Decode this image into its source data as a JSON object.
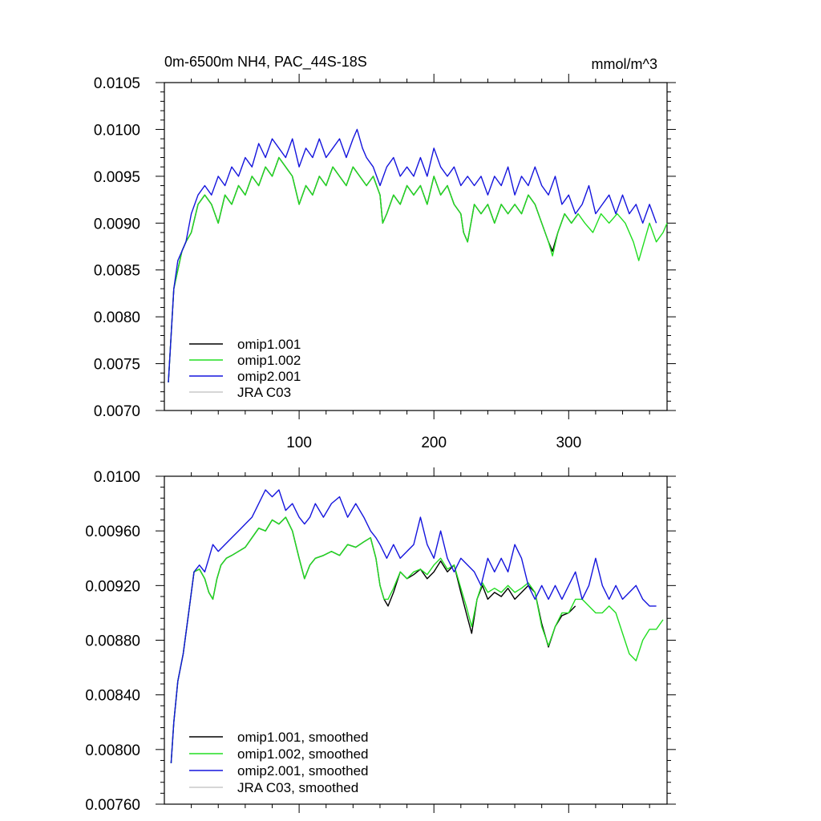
{
  "chart_data": [
    {
      "type": "line",
      "title": "0m-6500m NH4, PAC_44S-18S",
      "units": "mmol/m^3",
      "xlim": [
        0,
        373
      ],
      "ylim": [
        0.007,
        0.0105
      ],
      "xticks": [
        100,
        200,
        300
      ],
      "xtick_labels": [
        "100",
        "200",
        "300"
      ],
      "yticks": [
        0.007,
        0.0075,
        0.008,
        0.0085,
        0.009,
        0.0095,
        0.01,
        0.0105
      ],
      "ytick_labels": [
        "0.0070",
        "0.0075",
        "0.0080",
        "0.0085",
        "0.0090",
        "0.0095",
        "0.0100",
        "0.0105"
      ],
      "legend_position": "bottom-left",
      "series": [
        {
          "name": "omip1.001",
          "color": "#000000",
          "x": [
            3,
            5,
            7,
            10,
            13,
            16,
            20,
            25,
            30,
            35,
            40,
            45,
            50,
            55,
            60,
            65,
            70,
            75,
            80,
            85,
            90,
            95,
            100,
            105,
            110,
            115,
            120,
            125,
            130,
            135,
            140,
            145,
            150,
            155,
            160,
            162,
            165,
            170,
            175,
            180,
            185,
            190,
            195,
            200,
            205,
            210,
            215,
            220,
            222,
            225,
            230,
            235,
            240,
            245,
            250,
            255,
            260,
            265,
            270,
            275,
            280,
            285,
            288,
            292,
            297,
            302,
            307
          ],
          "values": [
            0.0073,
            0.0078,
            0.0083,
            0.0085,
            0.0087,
            0.0088,
            0.0089,
            0.0092,
            0.0093,
            0.0092,
            0.009,
            0.0093,
            0.0092,
            0.0094,
            0.0093,
            0.0095,
            0.0094,
            0.0096,
            0.0095,
            0.0097,
            0.0096,
            0.0095,
            0.0092,
            0.0094,
            0.0093,
            0.0095,
            0.0094,
            0.0096,
            0.0095,
            0.0094,
            0.0096,
            0.0095,
            0.0094,
            0.0095,
            0.0093,
            0.009,
            0.0091,
            0.0093,
            0.0092,
            0.0094,
            0.0093,
            0.0094,
            0.0092,
            0.0095,
            0.0093,
            0.0094,
            0.0092,
            0.0091,
            0.0089,
            0.0088,
            0.0092,
            0.0091,
            0.0092,
            0.009,
            0.0092,
            0.0091,
            0.0092,
            0.0091,
            0.0093,
            0.0092,
            0.009,
            0.0088,
            0.0087,
            0.0089,
            0.0091,
            0.009,
            0.0091
          ]
        },
        {
          "name": "omip1.002",
          "color": "#22dd22",
          "x": [
            3,
            5,
            7,
            10,
            13,
            16,
            20,
            25,
            30,
            35,
            40,
            45,
            50,
            55,
            60,
            65,
            70,
            75,
            80,
            85,
            90,
            95,
            100,
            105,
            110,
            115,
            120,
            125,
            130,
            135,
            140,
            145,
            150,
            155,
            160,
            162,
            165,
            170,
            175,
            180,
            185,
            190,
            195,
            200,
            205,
            210,
            215,
            220,
            222,
            225,
            230,
            235,
            240,
            245,
            250,
            255,
            260,
            265,
            270,
            275,
            280,
            285,
            288,
            292,
            297,
            302,
            307,
            312,
            318,
            324,
            330,
            336,
            342,
            348,
            352,
            356,
            360,
            365,
            370,
            373
          ],
          "values": [
            0.0073,
            0.0078,
            0.0083,
            0.0085,
            0.0087,
            0.0088,
            0.0089,
            0.0092,
            0.0093,
            0.0092,
            0.009,
            0.0093,
            0.0092,
            0.0094,
            0.0093,
            0.0095,
            0.0094,
            0.0096,
            0.0095,
            0.0097,
            0.0096,
            0.0095,
            0.0092,
            0.0094,
            0.0093,
            0.0095,
            0.0094,
            0.0096,
            0.0095,
            0.0094,
            0.0096,
            0.0095,
            0.0094,
            0.0095,
            0.0093,
            0.009,
            0.0091,
            0.0093,
            0.0092,
            0.0094,
            0.0093,
            0.0094,
            0.0092,
            0.0095,
            0.0093,
            0.0094,
            0.0092,
            0.0091,
            0.0089,
            0.0088,
            0.0092,
            0.0091,
            0.0092,
            0.009,
            0.0092,
            0.0091,
            0.0092,
            0.0091,
            0.0093,
            0.0092,
            0.009,
            0.0088,
            0.00865,
            0.0089,
            0.0091,
            0.009,
            0.0091,
            0.009,
            0.0089,
            0.0091,
            0.009,
            0.0091,
            0.009,
            0.0088,
            0.0086,
            0.0088,
            0.009,
            0.0088,
            0.0089,
            0.009
          ]
        },
        {
          "name": "omip2.001",
          "color": "#1515dd",
          "x": [
            3,
            5,
            7,
            10,
            13,
            16,
            20,
            25,
            30,
            35,
            40,
            45,
            50,
            55,
            60,
            65,
            70,
            75,
            80,
            85,
            90,
            95,
            100,
            105,
            110,
            115,
            120,
            125,
            130,
            135,
            140,
            143,
            147,
            150,
            155,
            160,
            165,
            170,
            175,
            180,
            185,
            190,
            195,
            200,
            205,
            210,
            215,
            220,
            225,
            230,
            235,
            240,
            245,
            250,
            255,
            260,
            265,
            270,
            275,
            280,
            285,
            290,
            295,
            300,
            305,
            310,
            315,
            320,
            325,
            330,
            335,
            340,
            345,
            350,
            355,
            360,
            365
          ],
          "values": [
            0.0073,
            0.0078,
            0.0083,
            0.0086,
            0.0087,
            0.0088,
            0.0091,
            0.0093,
            0.0094,
            0.0093,
            0.0095,
            0.0094,
            0.0096,
            0.0095,
            0.0097,
            0.0096,
            0.00985,
            0.0097,
            0.0099,
            0.0098,
            0.0097,
            0.0099,
            0.0096,
            0.0098,
            0.0097,
            0.0099,
            0.0097,
            0.0098,
            0.0099,
            0.0097,
            0.0099,
            0.01,
            0.0098,
            0.0097,
            0.0096,
            0.0094,
            0.0096,
            0.0097,
            0.0095,
            0.0096,
            0.0095,
            0.0097,
            0.0095,
            0.0098,
            0.0096,
            0.0095,
            0.0096,
            0.0094,
            0.0095,
            0.0094,
            0.0095,
            0.0093,
            0.0095,
            0.0094,
            0.0096,
            0.0093,
            0.0095,
            0.0094,
            0.0096,
            0.0094,
            0.0093,
            0.0095,
            0.0092,
            0.0093,
            0.0091,
            0.0092,
            0.0094,
            0.0091,
            0.0092,
            0.0093,
            0.0091,
            0.0093,
            0.0091,
            0.0092,
            0.009,
            0.0092,
            0.009
          ]
        },
        {
          "name": "JRA C03",
          "color": "#c8c8c8",
          "x": [],
          "values": []
        }
      ]
    },
    {
      "type": "line",
      "title": "",
      "units": "",
      "xlim": [
        0,
        373
      ],
      "ylim": [
        0.0076,
        0.01
      ],
      "xticks": [
        100,
        200,
        300
      ],
      "xtick_labels": [
        "",
        "",
        ""
      ],
      "yticks": [
        0.0076,
        0.008,
        0.0084,
        0.0088,
        0.0092,
        0.0096,
        0.01
      ],
      "ytick_labels": [
        "0.00760",
        "0.00800",
        "0.00840",
        "0.00880",
        "0.00920",
        "0.00960",
        "0.0100"
      ],
      "legend_position": "bottom-left",
      "series": [
        {
          "name": "omip1.001, smoothed",
          "color": "#000000",
          "x": [
            5,
            7,
            10,
            14,
            18,
            22,
            26,
            30,
            33,
            36,
            39,
            42,
            46,
            50,
            55,
            60,
            65,
            70,
            75,
            80,
            85,
            90,
            95,
            100,
            104,
            108,
            112,
            118,
            124,
            130,
            136,
            142,
            148,
            153,
            157,
            160,
            163,
            166,
            170,
            175,
            180,
            185,
            190,
            195,
            200,
            205,
            210,
            215,
            220,
            224,
            228,
            232,
            236,
            240,
            245,
            250,
            255,
            260,
            265,
            270,
            275,
            280,
            285,
            290,
            295,
            300,
            305
          ],
          "values": [
            0.0079,
            0.0082,
            0.0085,
            0.0087,
            0.009,
            0.0093,
            0.00932,
            0.00925,
            0.00915,
            0.0091,
            0.00925,
            0.00935,
            0.0094,
            0.00942,
            0.00945,
            0.00948,
            0.00955,
            0.00962,
            0.0096,
            0.00968,
            0.00965,
            0.0097,
            0.0096,
            0.0094,
            0.00925,
            0.00935,
            0.0094,
            0.00942,
            0.00945,
            0.00942,
            0.0095,
            0.00948,
            0.00952,
            0.00955,
            0.0094,
            0.0092,
            0.0091,
            0.00905,
            0.00915,
            0.0093,
            0.00925,
            0.00928,
            0.00932,
            0.00925,
            0.0093,
            0.00938,
            0.0093,
            0.00935,
            0.00915,
            0.009,
            0.00885,
            0.0091,
            0.0092,
            0.0091,
            0.00915,
            0.00912,
            0.00918,
            0.0091,
            0.00915,
            0.0092,
            0.00915,
            0.00892,
            0.00875,
            0.0089,
            0.00898,
            0.009,
            0.00905
          ]
        },
        {
          "name": "omip1.002, smoothed",
          "color": "#22dd22",
          "x": [
            5,
            7,
            10,
            14,
            18,
            22,
            26,
            30,
            33,
            36,
            39,
            42,
            46,
            50,
            55,
            60,
            65,
            70,
            75,
            80,
            85,
            90,
            95,
            100,
            104,
            108,
            112,
            118,
            124,
            130,
            136,
            142,
            148,
            153,
            157,
            160,
            163,
            166,
            170,
            175,
            180,
            185,
            190,
            195,
            200,
            205,
            210,
            215,
            220,
            224,
            228,
            232,
            236,
            240,
            245,
            250,
            255,
            260,
            265,
            270,
            275,
            280,
            285,
            290,
            295,
            300,
            305,
            310,
            315,
            320,
            325,
            330,
            335,
            340,
            345,
            350,
            355,
            360,
            365,
            370
          ],
          "values": [
            0.0079,
            0.0082,
            0.0085,
            0.0087,
            0.009,
            0.0093,
            0.00932,
            0.00925,
            0.00915,
            0.0091,
            0.00925,
            0.00935,
            0.0094,
            0.00942,
            0.00945,
            0.00948,
            0.00955,
            0.00962,
            0.0096,
            0.00968,
            0.00965,
            0.0097,
            0.0096,
            0.0094,
            0.00925,
            0.00935,
            0.0094,
            0.00942,
            0.00945,
            0.00942,
            0.0095,
            0.00948,
            0.00952,
            0.00955,
            0.0094,
            0.0092,
            0.0091,
            0.0091,
            0.00918,
            0.0093,
            0.00925,
            0.0093,
            0.00932,
            0.00928,
            0.00935,
            0.0094,
            0.00932,
            0.00935,
            0.00918,
            0.00905,
            0.0089,
            0.0091,
            0.00922,
            0.00915,
            0.00918,
            0.00915,
            0.0092,
            0.00915,
            0.00918,
            0.00922,
            0.00915,
            0.0089,
            0.00876,
            0.0089,
            0.009,
            0.009,
            0.0091,
            0.0091,
            0.00905,
            0.009,
            0.009,
            0.00905,
            0.009,
            0.00885,
            0.0087,
            0.00865,
            0.0088,
            0.00888,
            0.00888,
            0.00895
          ]
        },
        {
          "name": "omip2.001, smoothed",
          "color": "#1515dd",
          "x": [
            5,
            7,
            10,
            14,
            18,
            22,
            26,
            30,
            33,
            36,
            40,
            45,
            50,
            55,
            60,
            65,
            70,
            75,
            80,
            85,
            90,
            95,
            100,
            104,
            108,
            112,
            118,
            124,
            130,
            136,
            142,
            148,
            153,
            157,
            160,
            165,
            170,
            175,
            180,
            185,
            190,
            195,
            200,
            205,
            210,
            215,
            220,
            225,
            230,
            235,
            240,
            245,
            250,
            255,
            260,
            265,
            270,
            275,
            280,
            285,
            290,
            295,
            300,
            305,
            310,
            315,
            320,
            325,
            330,
            335,
            340,
            345,
            350,
            355,
            360,
            365
          ],
          "values": [
            0.0079,
            0.0082,
            0.0085,
            0.0087,
            0.009,
            0.0093,
            0.00935,
            0.0093,
            0.0094,
            0.0095,
            0.00945,
            0.0095,
            0.00955,
            0.0096,
            0.00965,
            0.0097,
            0.0098,
            0.0099,
            0.00985,
            0.0099,
            0.00975,
            0.0098,
            0.0097,
            0.00965,
            0.0097,
            0.0098,
            0.0097,
            0.0098,
            0.00985,
            0.0097,
            0.0098,
            0.0097,
            0.0096,
            0.00955,
            0.0095,
            0.0094,
            0.0095,
            0.0094,
            0.00945,
            0.0095,
            0.0097,
            0.0095,
            0.0094,
            0.0096,
            0.0094,
            0.0093,
            0.0094,
            0.00935,
            0.0093,
            0.0092,
            0.0094,
            0.0093,
            0.0094,
            0.0093,
            0.0095,
            0.0094,
            0.0092,
            0.0091,
            0.0092,
            0.0091,
            0.0092,
            0.0091,
            0.0092,
            0.0093,
            0.0091,
            0.0092,
            0.0094,
            0.0092,
            0.0091,
            0.0092,
            0.0091,
            0.00915,
            0.0092,
            0.0091,
            0.00905,
            0.00905
          ]
        },
        {
          "name": "JRA C03, smoothed",
          "color": "#c8c8c8",
          "x": [],
          "values": []
        }
      ]
    }
  ]
}
